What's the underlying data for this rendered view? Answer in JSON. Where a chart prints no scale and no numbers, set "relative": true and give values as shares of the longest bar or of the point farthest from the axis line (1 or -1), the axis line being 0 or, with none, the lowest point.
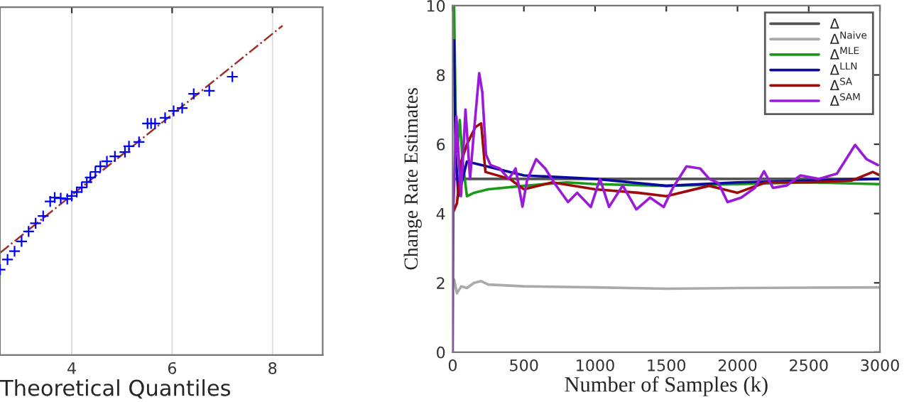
{
  "chart_data": [
    {
      "type": "scatter",
      "xlabel": "Theoretical Quantiles",
      "relative": true,
      "xlim": [
        2.57,
        9
      ],
      "xticks": [
        4,
        6,
        8
      ],
      "tick_labels": "x",
      "grid": "x",
      "legend": false,
      "series": [
        {
          "type": "scatter",
          "marker": "cross",
          "color": "#0000ff",
          "x": [
            2.57,
            2.72,
            2.86,
            3.0,
            3.14,
            3.28,
            3.43,
            3.57,
            3.66,
            3.78,
            3.91,
            4.0,
            4.1,
            4.2,
            4.3,
            4.37,
            4.47,
            4.57,
            4.7,
            4.86,
            5.06,
            5.14,
            5.34,
            5.51,
            5.58,
            5.66,
            5.86,
            6.03,
            6.2,
            6.43,
            6.74,
            7.2
          ],
          "values": [
            0.259,
            0.29,
            0.315,
            0.345,
            0.375,
            0.4,
            0.422,
            0.466,
            0.478,
            0.476,
            0.474,
            0.483,
            0.495,
            0.509,
            0.525,
            0.539,
            0.556,
            0.573,
            0.588,
            0.603,
            0.616,
            0.634,
            0.647,
            0.703,
            0.703,
            0.703,
            0.72,
            0.741,
            0.75,
            0.793,
            0.802,
            0.845
          ]
        },
        {
          "type": "line",
          "line_style": "dashed",
          "marker": "none",
          "color": "#a0302a",
          "x": [
            2.57,
            8.2
          ],
          "values": [
            0.31,
            1.0
          ]
        }
      ]
    },
    {
      "type": "line",
      "xlabel": "Number of Samples (k)",
      "ylabel": "Change Rate Estimates",
      "xlim": [
        0,
        3000
      ],
      "ylim": [
        0,
        10
      ],
      "xticks": [
        0,
        500,
        1000,
        1500,
        2000,
        2500,
        3000
      ],
      "yticks": [
        0,
        2,
        4,
        6,
        8,
        10
      ],
      "grid": false,
      "legend": "top right",
      "marker": "none",
      "line_style": "solid",
      "series": [
        {
          "name": "Δ",
          "color": "#555555",
          "x": [
            0,
            3000
          ],
          "values": [
            5,
            5
          ]
        },
        {
          "name": "Δ$^{Naive}$",
          "color": "#aaaaaa",
          "x": [
            10,
            30,
            60,
            100,
            150,
            200,
            250,
            500,
            1000,
            1500,
            2000,
            2500,
            3000
          ],
          "values": [
            2.1,
            1.7,
            1.9,
            1.85,
            2.0,
            2.05,
            1.95,
            1.9,
            1.87,
            1.83,
            1.85,
            1.86,
            1.87
          ]
        },
        {
          "name": "Δ$^{MLE}$",
          "color": "#1a9a1a",
          "x": [
            0,
            10,
            20,
            30,
            50,
            70,
            100,
            150,
            250,
            500,
            800,
            1000,
            1500,
            2000,
            2500,
            3000
          ],
          "values": [
            10,
            10,
            7,
            5.8,
            6.7,
            5.5,
            4.5,
            4.6,
            4.7,
            4.8,
            4.9,
            4.85,
            4.8,
            4.85,
            4.9,
            4.85
          ]
        },
        {
          "name": "Δ$^{LLN}$",
          "color": "#0a0aa0",
          "x": [
            0,
            10,
            20,
            40,
            100,
            200,
            300,
            500,
            1000,
            1500,
            2000,
            2500,
            3000
          ],
          "values": [
            9,
            9,
            5.8,
            4.5,
            5.5,
            5.4,
            5.3,
            5.1,
            5.0,
            4.8,
            4.9,
            4.95,
            5.0
          ]
        },
        {
          "name": "Δ$^{SA}$",
          "color": "#a00a0a",
          "x": [
            0,
            30,
            60,
            100,
            160,
            200,
            230,
            400,
            500,
            700,
            1000,
            1300,
            1500,
            1800,
            2000,
            2200,
            2500,
            2800,
            2950,
            3000
          ],
          "values": [
            4,
            4.3,
            5.5,
            6.0,
            6.5,
            6.6,
            5.2,
            5.0,
            4.7,
            4.9,
            4.7,
            4.6,
            4.5,
            4.8,
            4.6,
            4.9,
            4.9,
            4.95,
            5.2,
            5.1
          ]
        },
        {
          "name": "Δ$^{SAM}$",
          "color": "#9a1ad8",
          "x": [
            0,
            4,
            26,
            58,
            90,
            122,
            144,
            186,
            208,
            234,
            266,
            330,
            394,
            442,
            490,
            522,
            586,
            650,
            714,
            810,
            874,
            970,
            1034,
            1098,
            1194,
            1290,
            1386,
            1482,
            1546,
            1642,
            1738,
            1802,
            1866,
            1930,
            2026,
            2122,
            2186,
            2250,
            2346,
            2442,
            2570,
            2698,
            2826,
            2906,
            2986
          ],
          "values": [
            0,
            4.12,
            6.8,
            4.5,
            7.0,
            5.0,
            6.1,
            8.05,
            7.5,
            5.7,
            5.4,
            5.3,
            5.0,
            5.3,
            4.2,
            4.95,
            5.57,
            5.3,
            4.88,
            4.33,
            4.6,
            4.19,
            5.0,
            4.19,
            4.81,
            4.12,
            4.46,
            4.19,
            4.74,
            5.36,
            5.3,
            5.0,
            4.88,
            4.33,
            4.46,
            4.74,
            5.22,
            4.74,
            4.81,
            5.1,
            5.0,
            5.15,
            5.98,
            5.57,
            5.4
          ]
        }
      ]
    }
  ]
}
